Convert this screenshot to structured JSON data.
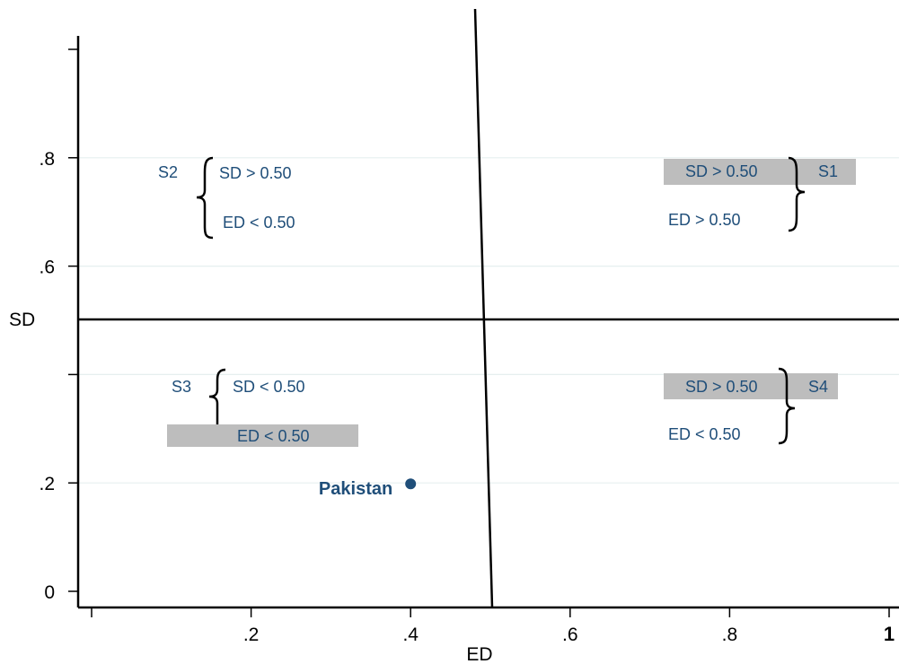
{
  "chart_data": {
    "type": "scatter",
    "xlabel": "ED",
    "ylabel": "SD",
    "xlim": [
      0,
      1
    ],
    "ylim": [
      0,
      1
    ],
    "x_ticks": [
      {
        "value": 0.2,
        "label": ".2"
      },
      {
        "value": 0.4,
        "label": ".4"
      },
      {
        "value": 0.6,
        "label": ".6"
      },
      {
        "value": 0.8,
        "label": ".8"
      },
      {
        "value": 1.0,
        "label": "1"
      }
    ],
    "y_ticks": [
      {
        "value": 0,
        "label": "0"
      },
      {
        "value": 0.2,
        "label": ".2"
      },
      {
        "value": 0.4,
        "label": ""
      },
      {
        "value": 0.6,
        "label": ".6"
      },
      {
        "value": 0.8,
        "label": ".8"
      },
      {
        "value": 1.0,
        "label": ""
      }
    ],
    "grid": true,
    "reference_lines": {
      "x": 0.5,
      "y": 0.5
    },
    "points": [
      {
        "label": "Pakistan",
        "x": 0.4,
        "y": 0.2
      }
    ],
    "quadrants": [
      {
        "name": "S2",
        "line1": "SD > 0.50",
        "line2": "ED < 0.50",
        "highlight": "none"
      },
      {
        "name": "S1",
        "line1": "SD > 0.50",
        "line2": "ED > 0.50",
        "highlight": "line1"
      },
      {
        "name": "S3",
        "line1": "SD < 0.50",
        "line2": "ED < 0.50",
        "highlight": "line2"
      },
      {
        "name": "S4",
        "line1": "SD > 0.50",
        "line2": "ED < 0.50",
        "highlight": "line1"
      }
    ]
  }
}
